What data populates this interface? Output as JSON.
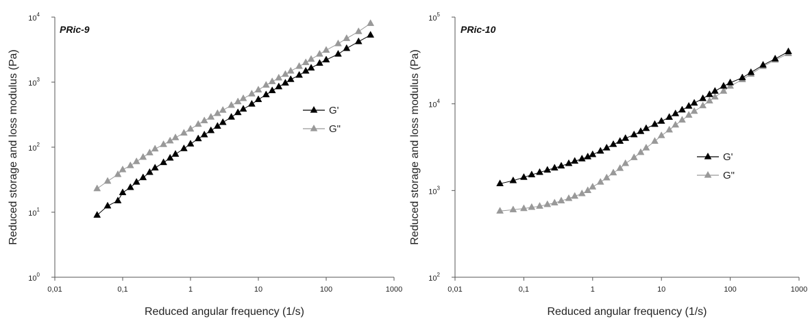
{
  "chart_data": [
    {
      "type": "line",
      "title": "PRic-9",
      "xlabel": "Reduced angular frequency (1/s)",
      "ylabel": "Reduced storage and loss modulus (Pa)",
      "xscale": "log",
      "yscale": "log",
      "xlim": [
        0.01,
        1000
      ],
      "ylim": [
        1,
        10000
      ],
      "x_ticks": [
        "0,01",
        "0,1",
        "1",
        "10",
        "100",
        "1000"
      ],
      "y_ticks": [
        {
          "base": "10",
          "exp": "0"
        },
        {
          "base": "10",
          "exp": "1"
        },
        {
          "base": "10",
          "exp": "2"
        },
        {
          "base": "10",
          "exp": "3"
        },
        {
          "base": "10",
          "exp": "4"
        }
      ],
      "legend_position": "right",
      "series": [
        {
          "name": "G'",
          "color": "#000000",
          "x": [
            0.042,
            0.06,
            0.085,
            0.1,
            0.13,
            0.16,
            0.2,
            0.25,
            0.3,
            0.4,
            0.5,
            0.6,
            0.8,
            1,
            1.3,
            1.6,
            2,
            2.5,
            3,
            4,
            5,
            6,
            8,
            10,
            13,
            16,
            20,
            25,
            30,
            40,
            50,
            60,
            80,
            100,
            150,
            200,
            300,
            450
          ],
          "y": [
            9,
            12.5,
            15,
            20,
            24,
            29,
            34,
            41,
            48,
            58,
            68,
            78,
            95,
            112,
            135,
            155,
            180,
            210,
            240,
            290,
            340,
            385,
            460,
            540,
            640,
            740,
            850,
            970,
            1100,
            1280,
            1480,
            1650,
            1950,
            2200,
            2700,
            3300,
            4200,
            5300
          ]
        },
        {
          "name": "G\"",
          "color": "#999999",
          "x": [
            0.042,
            0.06,
            0.085,
            0.1,
            0.13,
            0.16,
            0.2,
            0.25,
            0.3,
            0.4,
            0.5,
            0.6,
            0.8,
            1,
            1.3,
            1.6,
            2,
            2.5,
            3,
            4,
            5,
            6,
            8,
            10,
            13,
            16,
            20,
            25,
            30,
            40,
            50,
            60,
            80,
            100,
            150,
            200,
            300,
            450
          ],
          "y": [
            23,
            30,
            38,
            45,
            52,
            60,
            70,
            82,
            94,
            110,
            125,
            140,
            165,
            190,
            225,
            255,
            290,
            330,
            370,
            440,
            500,
            560,
            660,
            760,
            900,
            1020,
            1160,
            1320,
            1480,
            1750,
            2000,
            2250,
            2700,
            3100,
            3900,
            4700,
            6000,
            8000
          ]
        }
      ]
    },
    {
      "type": "line",
      "title": "PRic-10",
      "xlabel": "Reduced angular frequency (1/s)",
      "ylabel": "Reduced storage and loss modulus (Pa)",
      "xscale": "log",
      "yscale": "log",
      "xlim": [
        0.01,
        1000
      ],
      "ylim": [
        100,
        100000
      ],
      "x_ticks": [
        "0,01",
        "0,1",
        "1",
        "10",
        "100",
        "1000"
      ],
      "y_ticks": [
        {
          "base": "10",
          "exp": "2"
        },
        {
          "base": "10",
          "exp": "3"
        },
        {
          "base": "10",
          "exp": "4"
        },
        {
          "base": "10",
          "exp": "5"
        }
      ],
      "legend_position": "right",
      "series": [
        {
          "name": "G'",
          "color": "#000000",
          "x": [
            0.045,
            0.07,
            0.1,
            0.13,
            0.17,
            0.22,
            0.28,
            0.35,
            0.45,
            0.55,
            0.7,
            0.85,
            1,
            1.3,
            1.6,
            2,
            2.5,
            3,
            4,
            5,
            6,
            8,
            10,
            13,
            16,
            20,
            25,
            30,
            40,
            50,
            60,
            80,
            100,
            150,
            200,
            300,
            450,
            700
          ],
          "y": [
            1200,
            1300,
            1420,
            1520,
            1620,
            1720,
            1820,
            1920,
            2050,
            2180,
            2320,
            2450,
            2600,
            2850,
            3100,
            3400,
            3700,
            4000,
            4400,
            4800,
            5200,
            5800,
            6300,
            7000,
            7700,
            8500,
            9400,
            10200,
            11500,
            12800,
            14000,
            16000,
            17500,
            20000,
            23000,
            28000,
            33000,
            40000
          ]
        },
        {
          "name": "G\"",
          "color": "#999999",
          "x": [
            0.045,
            0.07,
            0.1,
            0.13,
            0.17,
            0.22,
            0.28,
            0.35,
            0.45,
            0.55,
            0.7,
            0.85,
            1,
            1.3,
            1.6,
            2,
            2.5,
            3,
            4,
            5,
            6,
            8,
            10,
            13,
            16,
            20,
            25,
            30,
            40,
            50,
            60,
            80,
            100,
            150,
            200,
            300,
            450,
            700
          ],
          "y": [
            580,
            600,
            620,
            640,
            660,
            690,
            720,
            760,
            810,
            860,
            920,
            1000,
            1100,
            1250,
            1400,
            1600,
            1800,
            2050,
            2400,
            2750,
            3100,
            3700,
            4300,
            5000,
            5700,
            6500,
            7400,
            8200,
            9500,
            10800,
            12000,
            14000,
            16000,
            19000,
            22000,
            27000,
            32000,
            38000
          ]
        }
      ]
    }
  ]
}
